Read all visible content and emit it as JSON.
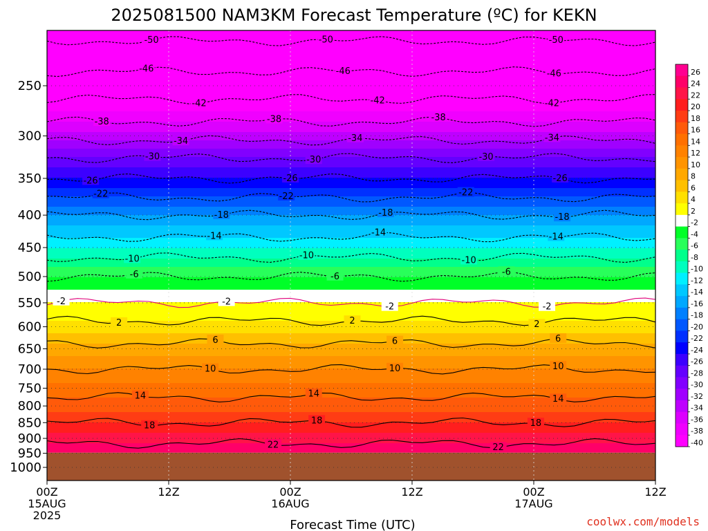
{
  "chart_data": {
    "type": "heatmap",
    "title": "2025081500 NAM3KM Forecast Temperature (ºC) for KEKN",
    "xlabel": "Forecast Time (UTC)",
    "ylabel": "",
    "credit": "coolwx.com/models",
    "x_ticks": [
      {
        "hour": 0,
        "lines": [
          "00Z",
          "15AUG",
          "2025"
        ]
      },
      {
        "hour": 12,
        "lines": [
          "12Z"
        ]
      },
      {
        "hour": 24,
        "lines": [
          "00Z",
          "16AUG"
        ]
      },
      {
        "hour": 36,
        "lines": [
          "12Z"
        ]
      },
      {
        "hour": 48,
        "lines": [
          "00Z",
          "17AUG"
        ]
      },
      {
        "hour": 60,
        "lines": [
          "12Z"
        ]
      }
    ],
    "xlim": [
      0,
      60
    ],
    "y_ticks": [
      "250",
      "300",
      "350",
      "400",
      "450",
      "500",
      "550",
      "600",
      "650",
      "700",
      "750",
      "800",
      "850",
      "900",
      "950",
      "1000"
    ],
    "ylim_hpa": [
      200,
      1040
    ],
    "y_scale": "log",
    "ground_level_hpa": 948,
    "grid": true,
    "colorbar": {
      "placement": "right",
      "labels": [
        "26",
        "24",
        "22",
        "20",
        "18",
        "16",
        "14",
        "12",
        "10",
        "8",
        "6",
        "4",
        "2",
        "-2",
        "-4",
        "-6",
        "-8",
        "-10",
        "-12",
        "-14",
        "-16",
        "-18",
        "-20",
        "-22",
        "-24",
        "-26",
        "-28",
        "-30",
        "-32",
        "-34",
        "-36",
        "-38",
        "-40"
      ],
      "colors": [
        "#ff0090",
        "#ff0068",
        "#ff1448",
        "#ff1e1e",
        "#ff3c14",
        "#ff5a0a",
        "#ff7000",
        "#ff8200",
        "#ff9400",
        "#ffa800",
        "#ffc000",
        "#ffe000",
        "#ffff00",
        "#ffffff",
        "#00ff28",
        "#28ff5a",
        "#00ff8c",
        "#00ffbe",
        "#00f0ff",
        "#00c8ff",
        "#00a8ff",
        "#0080ff",
        "#0058ff",
        "#0030ff",
        "#0000ff",
        "#3c00ff",
        "#6400ff",
        "#8200ff",
        "#a000ff",
        "#be00ff",
        "#dc00ff",
        "#f000ff",
        "#ff00ff"
      ]
    },
    "contours": [
      {
        "level": -50,
        "labels": [
          {
            "hour": 10.3,
            "text": "-50"
          },
          {
            "hour": 27.5,
            "text": "-50"
          },
          {
            "hour": 50.2,
            "text": "-50"
          }
        ]
      },
      {
        "level": -46,
        "labels": [
          {
            "hour": 9.8,
            "text": "-46"
          },
          {
            "hour": 29.2,
            "text": "-46"
          },
          {
            "hour": 50.0,
            "text": "-46"
          }
        ]
      },
      {
        "level": -42,
        "labels": [
          {
            "hour": 15.0,
            "text": "-42"
          },
          {
            "hour": 32.6,
            "text": "-42"
          },
          {
            "hour": 49.8,
            "text": "-42"
          }
        ]
      },
      {
        "level": -38,
        "labels": [
          {
            "hour": 5.4,
            "text": "-38"
          },
          {
            "hour": 22.4,
            "text": "-38"
          },
          {
            "hour": 38.6,
            "text": "-38"
          }
        ]
      },
      {
        "level": -34,
        "labels": [
          {
            "hour": 13.2,
            "text": "-34"
          },
          {
            "hour": 30.4,
            "text": "-34"
          },
          {
            "hour": 49.8,
            "text": "-34"
          }
        ]
      },
      {
        "level": -30,
        "labels": [
          {
            "hour": 10.4,
            "text": "-30"
          },
          {
            "hour": 26.3,
            "text": "-30"
          },
          {
            "hour": 43.3,
            "text": "-30"
          }
        ]
      },
      {
        "level": -26,
        "labels": [
          {
            "hour": 4.3,
            "text": "-26"
          },
          {
            "hour": 24.0,
            "text": "-26"
          },
          {
            "hour": 50.6,
            "text": "-26"
          }
        ]
      },
      {
        "level": -22,
        "labels": [
          {
            "hour": 5.3,
            "text": "-22"
          },
          {
            "hour": 23.6,
            "text": "-22"
          },
          {
            "hour": 41.3,
            "text": "-22"
          }
        ]
      },
      {
        "level": -18,
        "labels": [
          {
            "hour": 17.2,
            "text": "-18"
          },
          {
            "hour": 33.4,
            "text": "-18"
          },
          {
            "hour": 50.8,
            "text": "-18"
          }
        ]
      },
      {
        "level": -14,
        "labels": [
          {
            "hour": 16.5,
            "text": "-14"
          },
          {
            "hour": 32.7,
            "text": "-14"
          },
          {
            "hour": 50.2,
            "text": "-14"
          }
        ]
      },
      {
        "level": -10,
        "labels": [
          {
            "hour": 8.4,
            "text": "-10"
          },
          {
            "hour": 25.6,
            "text": "-10"
          },
          {
            "hour": 41.6,
            "text": "-10"
          }
        ]
      },
      {
        "level": -6,
        "labels": [
          {
            "hour": 8.6,
            "text": "-6"
          },
          {
            "hour": 28.4,
            "text": "-6"
          },
          {
            "hour": 45.3,
            "text": "-6"
          }
        ]
      },
      {
        "level": -2,
        "labels": [
          {
            "hour": 1.4,
            "text": "-2"
          },
          {
            "hour": 17.7,
            "text": "-2"
          },
          {
            "hour": 33.8,
            "text": "-2"
          },
          {
            "hour": 49.3,
            "text": "-2"
          }
        ]
      },
      {
        "level": 2,
        "labels": [
          {
            "hour": 7.1,
            "text": "2"
          },
          {
            "hour": 30.1,
            "text": "2"
          },
          {
            "hour": 48.3,
            "text": "2"
          }
        ]
      },
      {
        "level": 6,
        "labels": [
          {
            "hour": 16.6,
            "text": "6"
          },
          {
            "hour": 34.3,
            "text": "6"
          },
          {
            "hour": 50.4,
            "text": "6"
          }
        ]
      },
      {
        "level": 10,
        "labels": [
          {
            "hour": 16.1,
            "text": "10"
          },
          {
            "hour": 34.3,
            "text": "10"
          },
          {
            "hour": 50.4,
            "text": "10"
          }
        ]
      },
      {
        "level": 14,
        "labels": [
          {
            "hour": 9.2,
            "text": "14"
          },
          {
            "hour": 26.3,
            "text": "14"
          },
          {
            "hour": 50.4,
            "text": "14"
          }
        ]
      },
      {
        "level": 18,
        "labels": [
          {
            "hour": 10.1,
            "text": "18"
          },
          {
            "hour": 26.6,
            "text": "18"
          },
          {
            "hour": 48.2,
            "text": "18"
          }
        ]
      },
      {
        "level": 22,
        "labels": [
          {
            "hour": 22.3,
            "text": "22"
          },
          {
            "hour": 44.5,
            "text": "22"
          }
        ]
      }
    ],
    "temperature_profile": [
      {
        "hpa": 200,
        "t": -52
      },
      {
        "hpa": 225,
        "t": -48
      },
      {
        "hpa": 250,
        "t": -44
      },
      {
        "hpa": 275,
        "t": -40
      },
      {
        "hpa": 300,
        "t": -35
      },
      {
        "hpa": 325,
        "t": -30
      },
      {
        "hpa": 350,
        "t": -26
      },
      {
        "hpa": 375,
        "t": -22
      },
      {
        "hpa": 400,
        "t": -18
      },
      {
        "hpa": 425,
        "t": -15
      },
      {
        "hpa": 450,
        "t": -12
      },
      {
        "hpa": 475,
        "t": -9
      },
      {
        "hpa": 500,
        "t": -6
      },
      {
        "hpa": 525,
        "t": -4
      },
      {
        "hpa": 550,
        "t": -2
      },
      {
        "hpa": 575,
        "t": 1
      },
      {
        "hpa": 600,
        "t": 3
      },
      {
        "hpa": 650,
        "t": 7
      },
      {
        "hpa": 700,
        "t": 10
      },
      {
        "hpa": 750,
        "t": 13
      },
      {
        "hpa": 800,
        "t": 15
      },
      {
        "hpa": 850,
        "t": 18
      },
      {
        "hpa": 900,
        "t": 21
      },
      {
        "hpa": 950,
        "t": 24
      }
    ]
  }
}
